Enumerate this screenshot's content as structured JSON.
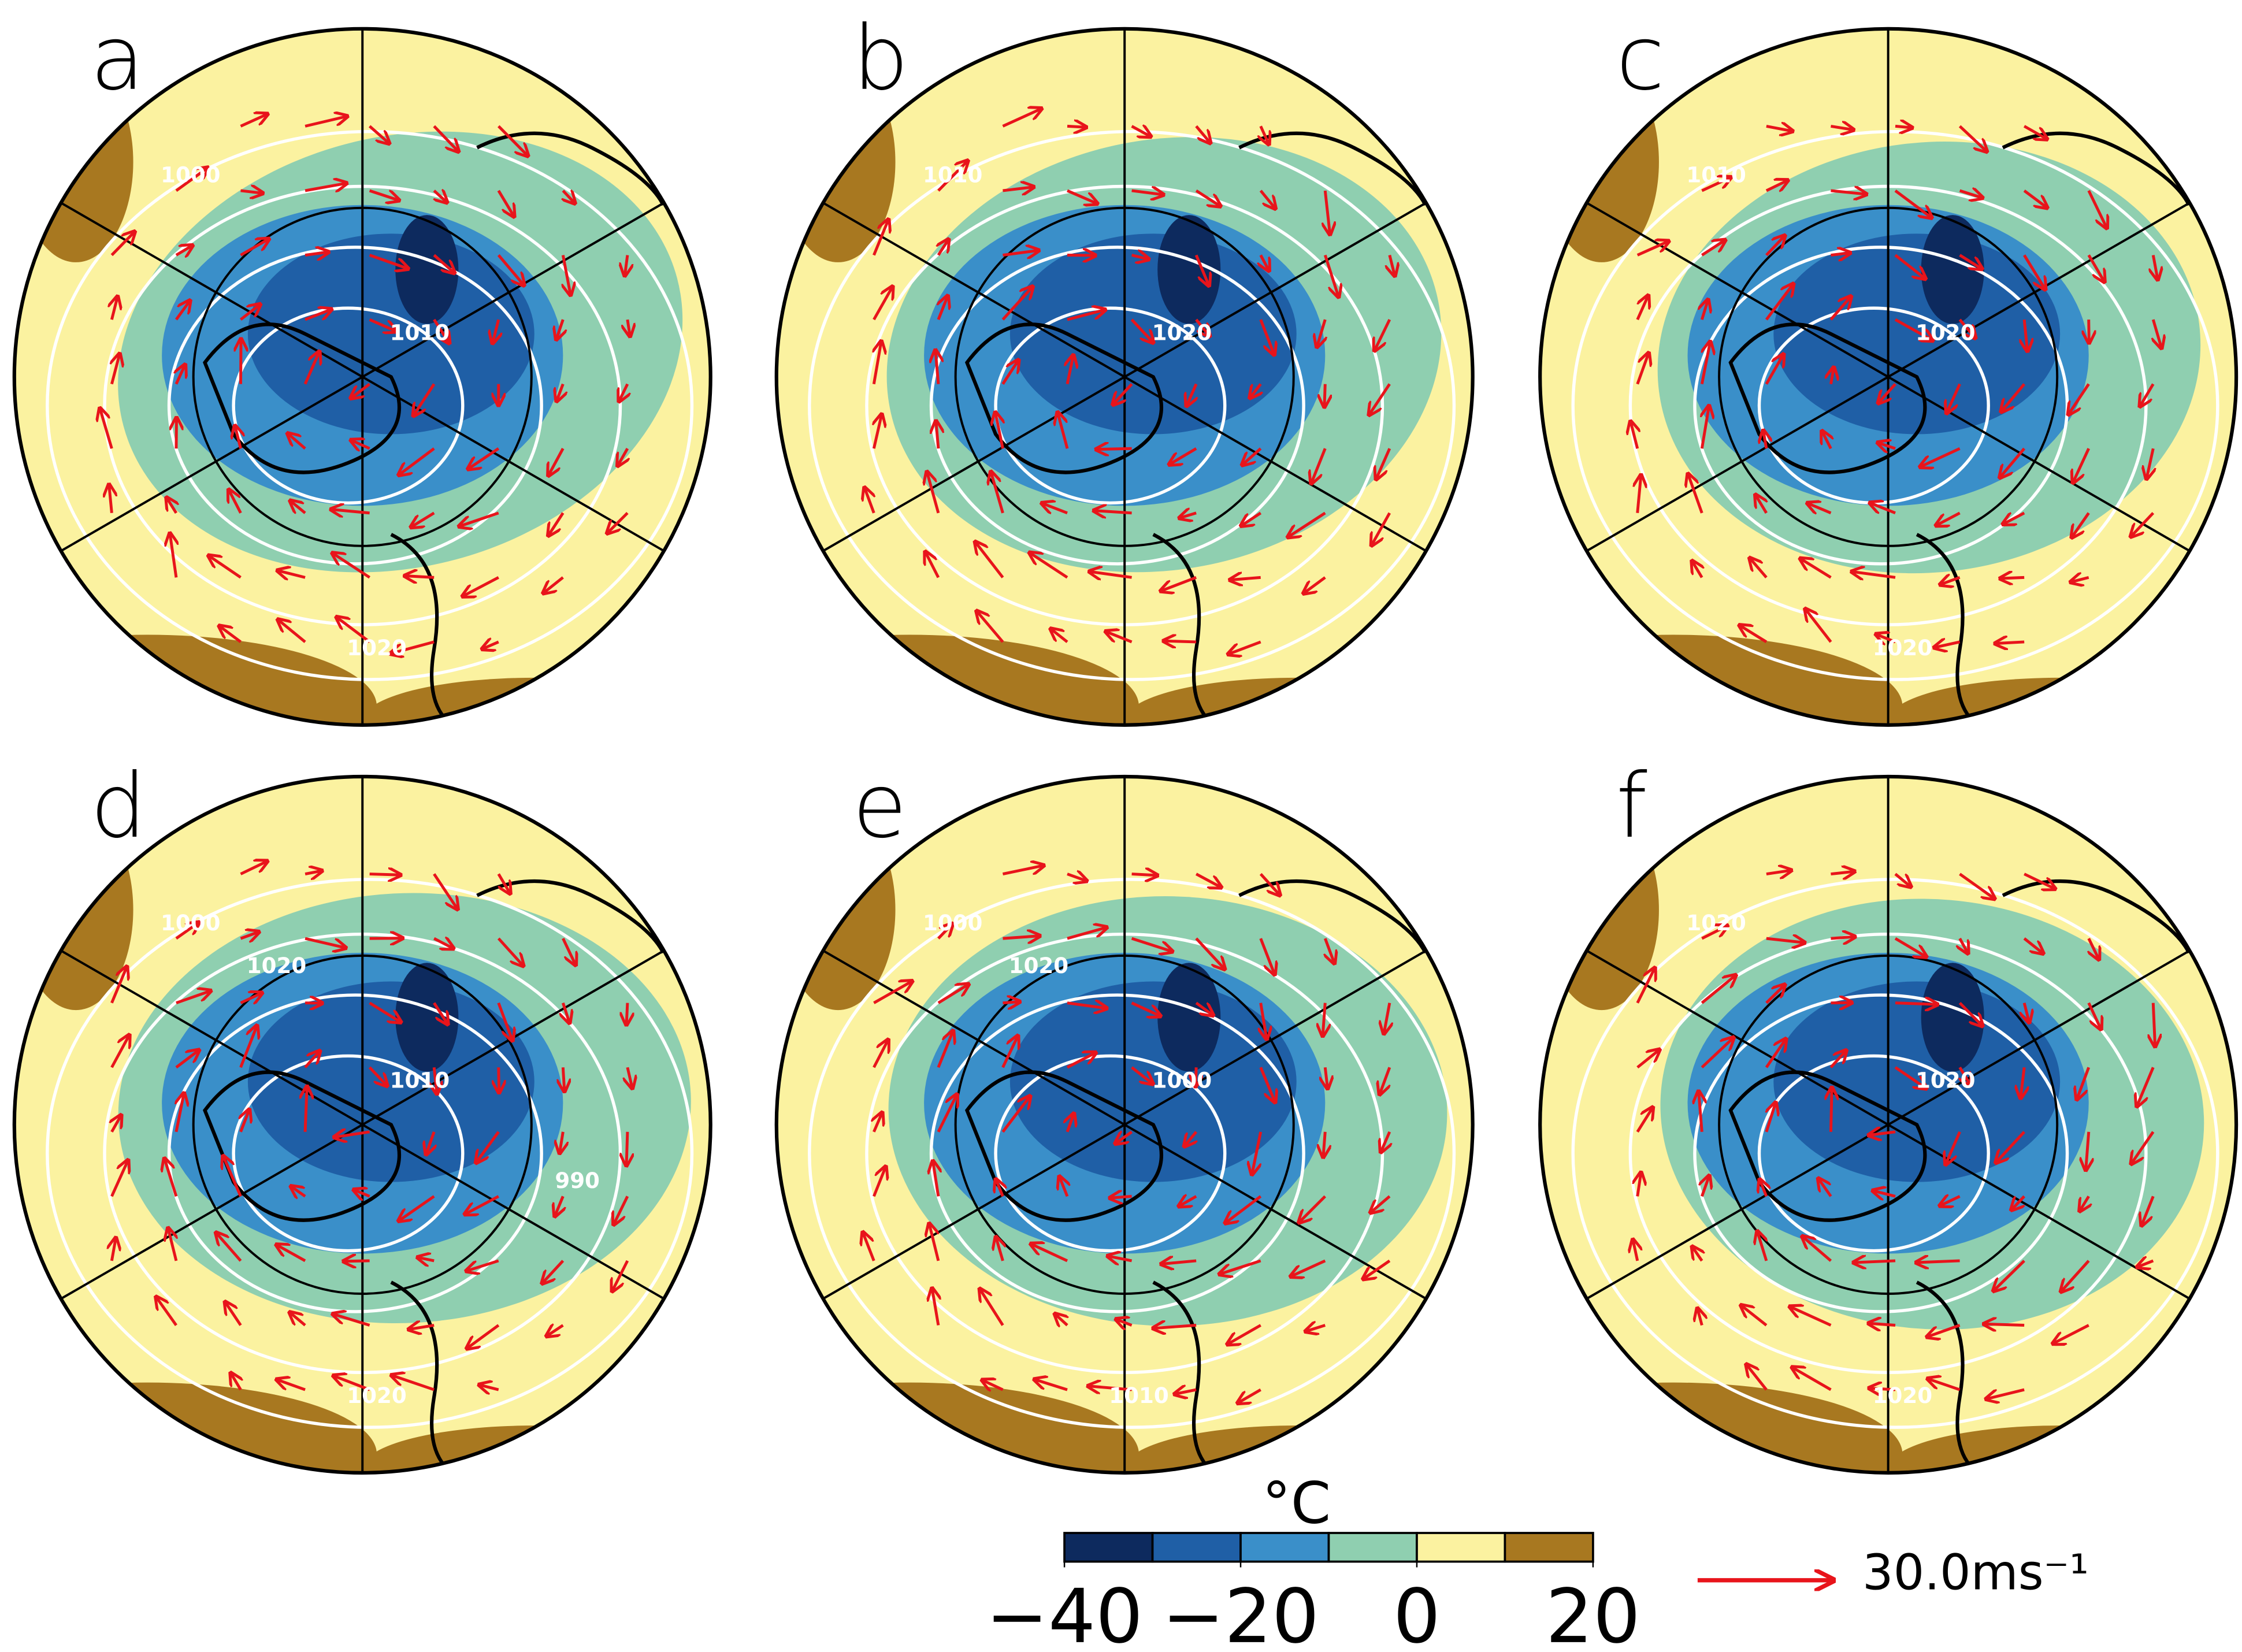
{
  "panels": [
    {
      "label": "a",
      "contour_labels": [
        "1000",
        "1010",
        "1020"
      ]
    },
    {
      "label": "b",
      "contour_labels": [
        "1010",
        "1020"
      ]
    },
    {
      "label": "c",
      "contour_labels": [
        "1010",
        "1020",
        "1020"
      ]
    },
    {
      "label": "d",
      "contour_labels": [
        "1000",
        "1010",
        "1020",
        "1020",
        "990"
      ]
    },
    {
      "label": "e",
      "contour_labels": [
        "1000",
        "1000",
        "1010",
        "1020"
      ]
    },
    {
      "label": "f",
      "contour_labels": [
        "1020",
        "1020",
        "1020"
      ]
    }
  ],
  "colorbar": {
    "unit": "°C",
    "lim": [
      -40,
      20
    ],
    "ticks": [
      {
        "value": -40,
        "label": "−40"
      },
      {
        "value": -20,
        "label": "−20"
      },
      0,
      20
    ],
    "colors": [
      "#0d2a5e",
      "#1f5fa6",
      "#3a8fc9",
      "#8fcfb0",
      "#fbf2a0",
      "#a87820"
    ]
  },
  "vector_reference": {
    "label": "30.0ms⁻¹",
    "color": "#e8141b"
  }
}
